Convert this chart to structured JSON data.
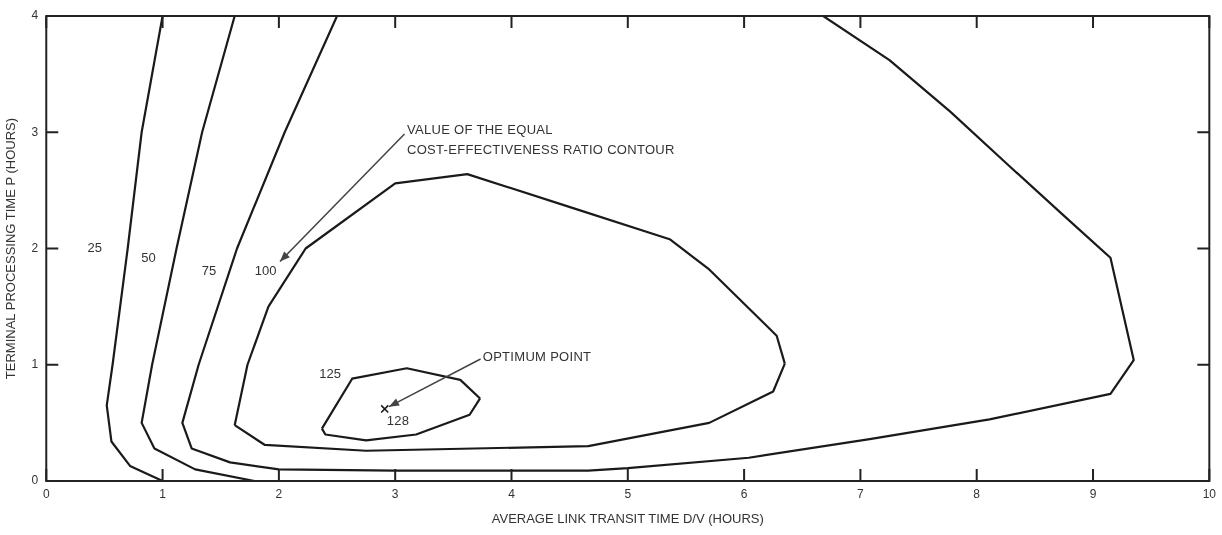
{
  "chart_data": {
    "type": "line",
    "xlabel": "AVERAGE LINK TRANSIT TIME D/V (HOURS)",
    "ylabel": "TERMINAL PROCESSING TIME P (HOURS)",
    "xlim": [
      0,
      10
    ],
    "xticks": [
      0,
      1,
      2,
      3,
      4,
      5,
      6,
      7,
      8,
      9,
      10
    ],
    "ylim": [
      0,
      4
    ],
    "yticks": [
      0,
      1,
      2,
      3,
      4
    ],
    "grid": false,
    "legend": false,
    "series": [
      {
        "name": "25",
        "color": "#1a1a1a",
        "x": [
          1.0,
          0.82,
          0.7,
          0.57,
          0.52,
          0.56,
          0.72,
          1.0
        ],
        "values": [
          4,
          3,
          2,
          1,
          0.65,
          0.34,
          0.13,
          0
        ]
      },
      {
        "name": "50",
        "color": "#1a1a1a",
        "x": [
          1.62,
          1.34,
          1.12,
          0.91,
          0.82,
          0.93,
          1.28,
          1.79
        ],
        "values": [
          4,
          3,
          2,
          1,
          0.5,
          0.28,
          0.1,
          0
        ]
      },
      {
        "name": "75",
        "color": "#1a1a1a",
        "x": [
          2.5,
          2.05,
          1.64,
          1.31,
          1.17,
          1.25,
          1.58,
          2.0,
          3.0,
          4.0,
          4.66,
          5.0,
          6.04,
          7.08,
          8.11,
          9.15,
          9.35,
          9.15,
          8.73,
          8.28,
          7.77,
          7.25,
          6.68
        ],
        "values": [
          4,
          3,
          2,
          1,
          0.5,
          0.28,
          0.16,
          0.1,
          0.09,
          0.09,
          0.09,
          0.11,
          0.2,
          0.36,
          0.53,
          0.75,
          1.04,
          1.92,
          2.3,
          2.71,
          3.18,
          3.62,
          4
        ]
      },
      {
        "name": "100",
        "color": "#1a1a1a",
        "x": [
          1.62,
          1.73,
          1.91,
          2.23,
          3.0,
          3.62,
          4.49,
          5.36,
          5.7,
          6.28,
          6.35
        ],
        "values": [
          0.48,
          1,
          1.5,
          2,
          2.56,
          2.64,
          2.36,
          2.08,
          1.82,
          1.25,
          1.01
        ]
      },
      {
        "color": "#1a1a1a",
        "x": [
          1.62,
          1.88,
          2.75,
          4.66,
          5.7,
          6.25,
          6.35
        ],
        "values": [
          0.48,
          0.31,
          0.26,
          0.3,
          0.5,
          0.77,
          1.01
        ]
      },
      {
        "name": "125",
        "color": "#1a1a1a",
        "x": [
          2.37,
          2.63,
          3.1,
          3.56,
          3.73
        ],
        "values": [
          0.45,
          0.88,
          0.97,
          0.87,
          0.71
        ]
      },
      {
        "color": "#1a1a1a",
        "x": [
          2.37,
          2.4,
          2.75,
          3.18,
          3.64,
          3.73
        ],
        "values": [
          0.45,
          0.4,
          0.35,
          0.4,
          0.57,
          0.71
        ]
      },
      {
        "type": "scatter",
        "marker": "cross",
        "color": "#1a1a1a",
        "x": [
          2.91
        ],
        "values": [
          0.62
        ]
      }
    ],
    "annotations": [
      "VALUE OF THE EQUAL COST-EFFECTIVENESS RATIO CONTOUR",
      {
        "text": "OPTIMUM POINT",
        "x": 2.91,
        "y": 0.62
      },
      {
        "text": "128",
        "x": 2.91,
        "y": 0.62
      }
    ]
  }
}
